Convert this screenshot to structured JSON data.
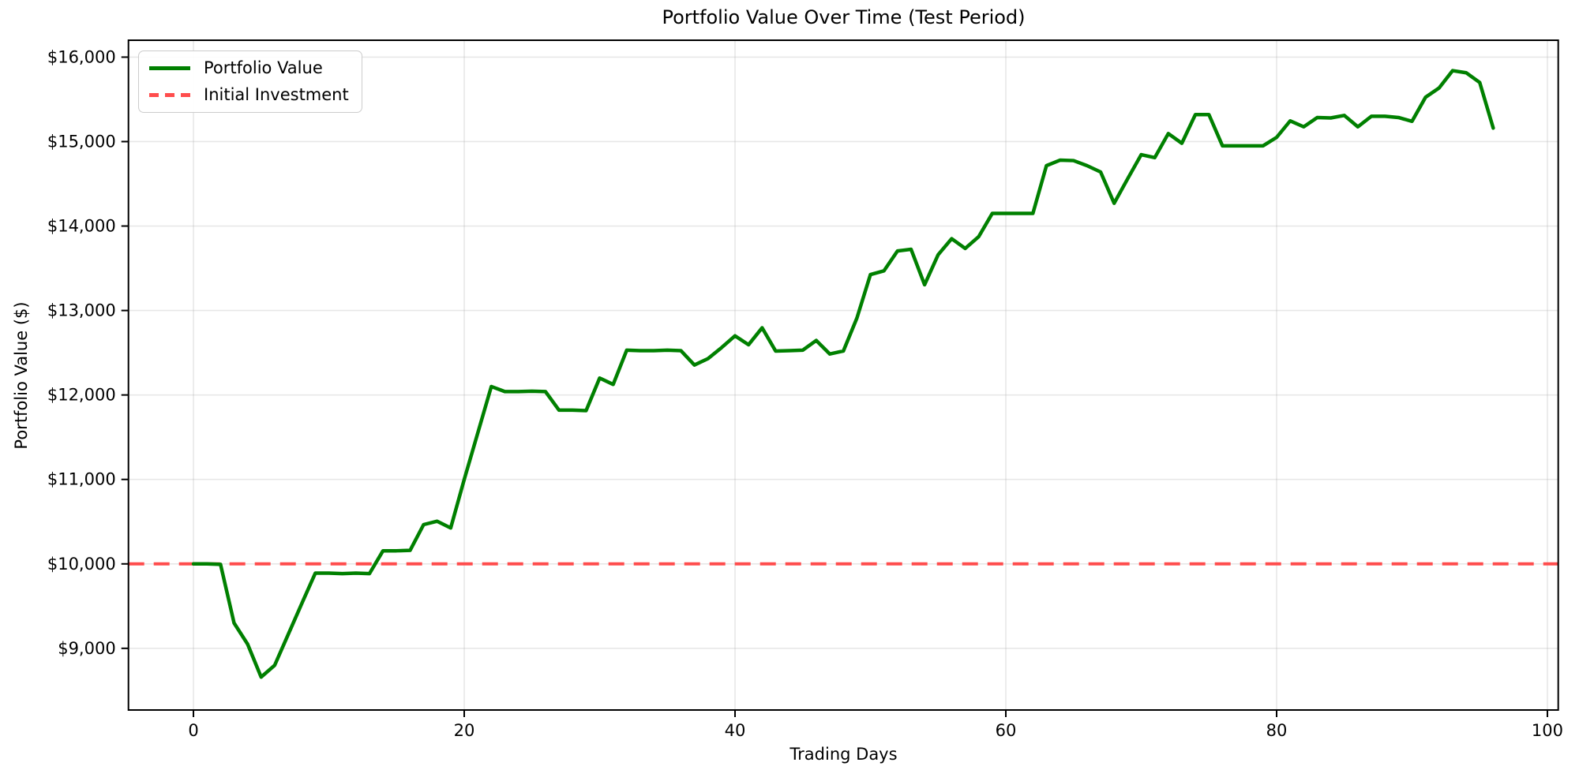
{
  "chart_data": {
    "type": "line",
    "title": "Portfolio Value Over Time (Test Period)",
    "xlabel": "Trading Days",
    "ylabel": "Portfolio Value ($)",
    "grid": true,
    "legend_position": "upper left",
    "xlim": [
      -4.8,
      100.8
    ],
    "ylim": [
      8270,
      16200
    ],
    "x_ticks": [
      0,
      20,
      40,
      60,
      80,
      100
    ],
    "x_tick_labels": [
      "0",
      "20",
      "40",
      "60",
      "80",
      "100"
    ],
    "y_ticks": [
      9000,
      10000,
      11000,
      12000,
      13000,
      14000,
      15000,
      16000
    ],
    "y_tick_labels": [
      "$9,000",
      "$10,000",
      "$11,000",
      "$12,000",
      "$13,000",
      "$14,000",
      "$15,000",
      "$16,000"
    ],
    "series": [
      {
        "name": "Portfolio Value",
        "color": "#008000",
        "line_style": "solid",
        "x_start": 0,
        "x_step": 1,
        "values": [
          10000,
          10000,
          9995,
          9300,
          9050,
          8660,
          8800,
          9165,
          9530,
          9890,
          9890,
          9885,
          9890,
          9885,
          10155,
          10155,
          10160,
          10465,
          10505,
          10425,
          11000,
          11550,
          12100,
          12040,
          12040,
          12045,
          12040,
          11820,
          11820,
          11815,
          12200,
          12125,
          12530,
          12525,
          12525,
          12530,
          12525,
          12355,
          12430,
          12560,
          12700,
          12595,
          12795,
          12520,
          12525,
          12530,
          12645,
          12485,
          12520,
          12910,
          13425,
          13470,
          13705,
          13725,
          13305,
          13660,
          13850,
          13735,
          13875,
          14150,
          14150,
          14150,
          14150,
          14715,
          14780,
          14775,
          14715,
          14640,
          14270,
          14560,
          14845,
          14810,
          15095,
          14980,
          15320,
          15320,
          14950,
          14950,
          14950,
          14950,
          15050,
          15245,
          15175,
          15285,
          15280,
          15310,
          15175,
          15300,
          15300,
          15285,
          15240,
          15525,
          15635,
          15840,
          15815,
          15700,
          15160
        ]
      }
    ],
    "reference_line": {
      "name": "Initial Investment",
      "value": 10000,
      "color": "#ff4d4d",
      "line_style": "dashed"
    },
    "colors": {
      "grid": "#b0b0b0",
      "spine": "#000000",
      "background": "#ffffff"
    }
  }
}
